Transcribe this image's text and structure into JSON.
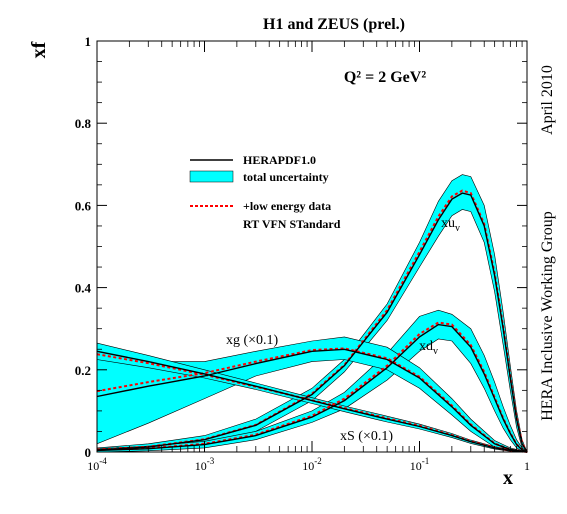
{
  "chart_data": {
    "type": "line",
    "title": "H1 and ZEUS (prel.)",
    "annotation_q2": "Q² = 2 GeV²",
    "xlabel": "x",
    "ylabel": "xf",
    "side_text_date": "April 2010",
    "side_text_group": "HERA Inclusive Working Group",
    "x_scale": "log",
    "xlim": [
      0.0001,
      1
    ],
    "ylim": [
      0,
      1
    ],
    "grid": false,
    "x_ticks": [
      {
        "value": 0.0001,
        "base": "10",
        "exp": "-4"
      },
      {
        "value": 0.001,
        "base": "10",
        "exp": "-3"
      },
      {
        "value": 0.01,
        "base": "10",
        "exp": "-2"
      },
      {
        "value": 0.1,
        "base": "10",
        "exp": "-1"
      },
      {
        "value": 1,
        "base": "1",
        "exp": ""
      }
    ],
    "y_ticks": [
      {
        "value": 0,
        "label": "0"
      },
      {
        "value": 0.2,
        "label": "0.2"
      },
      {
        "value": 0.4,
        "label": "0.4"
      },
      {
        "value": 0.6,
        "label": "0.6"
      },
      {
        "value": 0.8,
        "label": "0.8"
      },
      {
        "value": 1,
        "label": "1"
      }
    ],
    "legend": {
      "placement": "upper-center",
      "entries": [
        {
          "label": "HERAPDF1.0",
          "style": "solid-line",
          "color": "#000000"
        },
        {
          "label": "total uncertainty",
          "style": "band",
          "color": "#00ffff"
        },
        {
          "label": "+low energy data",
          "style": "dashed-line",
          "color": "#ff0000"
        },
        {
          "label": "RT VFN STandard",
          "style": "none",
          "color": "#ff0000"
        }
      ]
    },
    "band_color": "#00ffff",
    "central_color": "#000000",
    "alt_color": "#ff0000",
    "series": [
      {
        "name": "xuᵥ",
        "label_base": "xu",
        "label_sub": "v",
        "x": [
          0.0001,
          0.0003,
          0.001,
          0.003,
          0.01,
          0.02,
          0.05,
          0.1,
          0.15,
          0.2,
          0.25,
          0.3,
          0.4,
          0.5,
          0.6,
          0.7,
          0.8,
          0.9,
          1
        ],
        "central": [
          0.005,
          0.012,
          0.03,
          0.065,
          0.14,
          0.21,
          0.34,
          0.48,
          0.565,
          0.615,
          0.63,
          0.625,
          0.55,
          0.43,
          0.3,
          0.18,
          0.08,
          0.02,
          0
        ],
        "upper": [
          0.01,
          0.02,
          0.04,
          0.08,
          0.155,
          0.225,
          0.36,
          0.51,
          0.61,
          0.66,
          0.675,
          0.67,
          0.6,
          0.48,
          0.34,
          0.21,
          0.1,
          0.03,
          0
        ],
        "lower": [
          0.0,
          0.005,
          0.02,
          0.05,
          0.125,
          0.195,
          0.32,
          0.45,
          0.525,
          0.575,
          0.59,
          0.585,
          0.51,
          0.39,
          0.26,
          0.15,
          0.06,
          0.01,
          0
        ],
        "alt": [
          0.006,
          0.013,
          0.031,
          0.066,
          0.142,
          0.212,
          0.345,
          0.487,
          0.573,
          0.622,
          0.636,
          0.63,
          0.555,
          0.435,
          0.305,
          0.183,
          0.083,
          0.022,
          0
        ]
      },
      {
        "name": "xdᵥ",
        "label_base": "xd",
        "label_sub": "v",
        "x": [
          0.0001,
          0.0003,
          0.001,
          0.003,
          0.01,
          0.02,
          0.05,
          0.1,
          0.15,
          0.2,
          0.3,
          0.4,
          0.5,
          0.6,
          0.7,
          0.8,
          0.9,
          1
        ],
        "central": [
          0.004,
          0.008,
          0.018,
          0.04,
          0.085,
          0.125,
          0.205,
          0.28,
          0.31,
          0.305,
          0.255,
          0.19,
          0.13,
          0.08,
          0.045,
          0.018,
          0.005,
          0
        ],
        "upper": [
          0.008,
          0.014,
          0.026,
          0.05,
          0.1,
          0.145,
          0.24,
          0.33,
          0.345,
          0.335,
          0.3,
          0.235,
          0.17,
          0.11,
          0.065,
          0.03,
          0.01,
          0
        ],
        "lower": [
          0.0,
          0.003,
          0.01,
          0.03,
          0.072,
          0.105,
          0.175,
          0.245,
          0.275,
          0.27,
          0.215,
          0.155,
          0.1,
          0.058,
          0.03,
          0.01,
          0.002,
          0
        ],
        "alt": [
          0.005,
          0.009,
          0.02,
          0.042,
          0.088,
          0.13,
          0.21,
          0.287,
          0.315,
          0.31,
          0.26,
          0.195,
          0.133,
          0.082,
          0.046,
          0.019,
          0.006,
          0
        ]
      },
      {
        "name": "xg (×0.1)",
        "label_base": "xg (×0.1)",
        "label_sub": "",
        "x": [
          0.0001,
          0.0003,
          0.001,
          0.003,
          0.01,
          0.02,
          0.05,
          0.1,
          0.2,
          0.3,
          0.5,
          0.7,
          1
        ],
        "central": [
          0.135,
          0.16,
          0.185,
          0.215,
          0.245,
          0.25,
          0.225,
          0.18,
          0.11,
          0.065,
          0.02,
          0.006,
          0
        ],
        "upper": [
          0.23,
          0.22,
          0.22,
          0.245,
          0.27,
          0.28,
          0.255,
          0.205,
          0.13,
          0.08,
          0.028,
          0.01,
          0
        ],
        "lower": [
          0.02,
          0.07,
          0.13,
          0.185,
          0.22,
          0.225,
          0.2,
          0.155,
          0.09,
          0.05,
          0.012,
          0.003,
          0
        ],
        "alt": [
          0.148,
          0.17,
          0.192,
          0.22,
          0.248,
          0.252,
          0.228,
          0.183,
          0.113,
          0.067,
          0.021,
          0.006,
          0
        ]
      },
      {
        "name": "xS (×0.1)",
        "label_base": "xS (×0.1)",
        "label_sub": "",
        "x": [
          0.0001,
          0.0003,
          0.001,
          0.003,
          0.01,
          0.02,
          0.05,
          0.1,
          0.2,
          0.3,
          0.5,
          0.7,
          1
        ],
        "central": [
          0.245,
          0.22,
          0.19,
          0.16,
          0.125,
          0.105,
          0.08,
          0.062,
          0.04,
          0.025,
          0.01,
          0.004,
          0
        ],
        "upper": [
          0.265,
          0.235,
          0.2,
          0.168,
          0.132,
          0.112,
          0.087,
          0.068,
          0.045,
          0.029,
          0.013,
          0.006,
          0
        ],
        "lower": [
          0.225,
          0.205,
          0.18,
          0.152,
          0.118,
          0.098,
          0.073,
          0.056,
          0.035,
          0.021,
          0.007,
          0.002,
          0
        ],
        "alt": [
          0.238,
          0.216,
          0.188,
          0.159,
          0.126,
          0.107,
          0.082,
          0.064,
          0.041,
          0.026,
          0.011,
          0.004,
          0
        ]
      }
    ]
  }
}
